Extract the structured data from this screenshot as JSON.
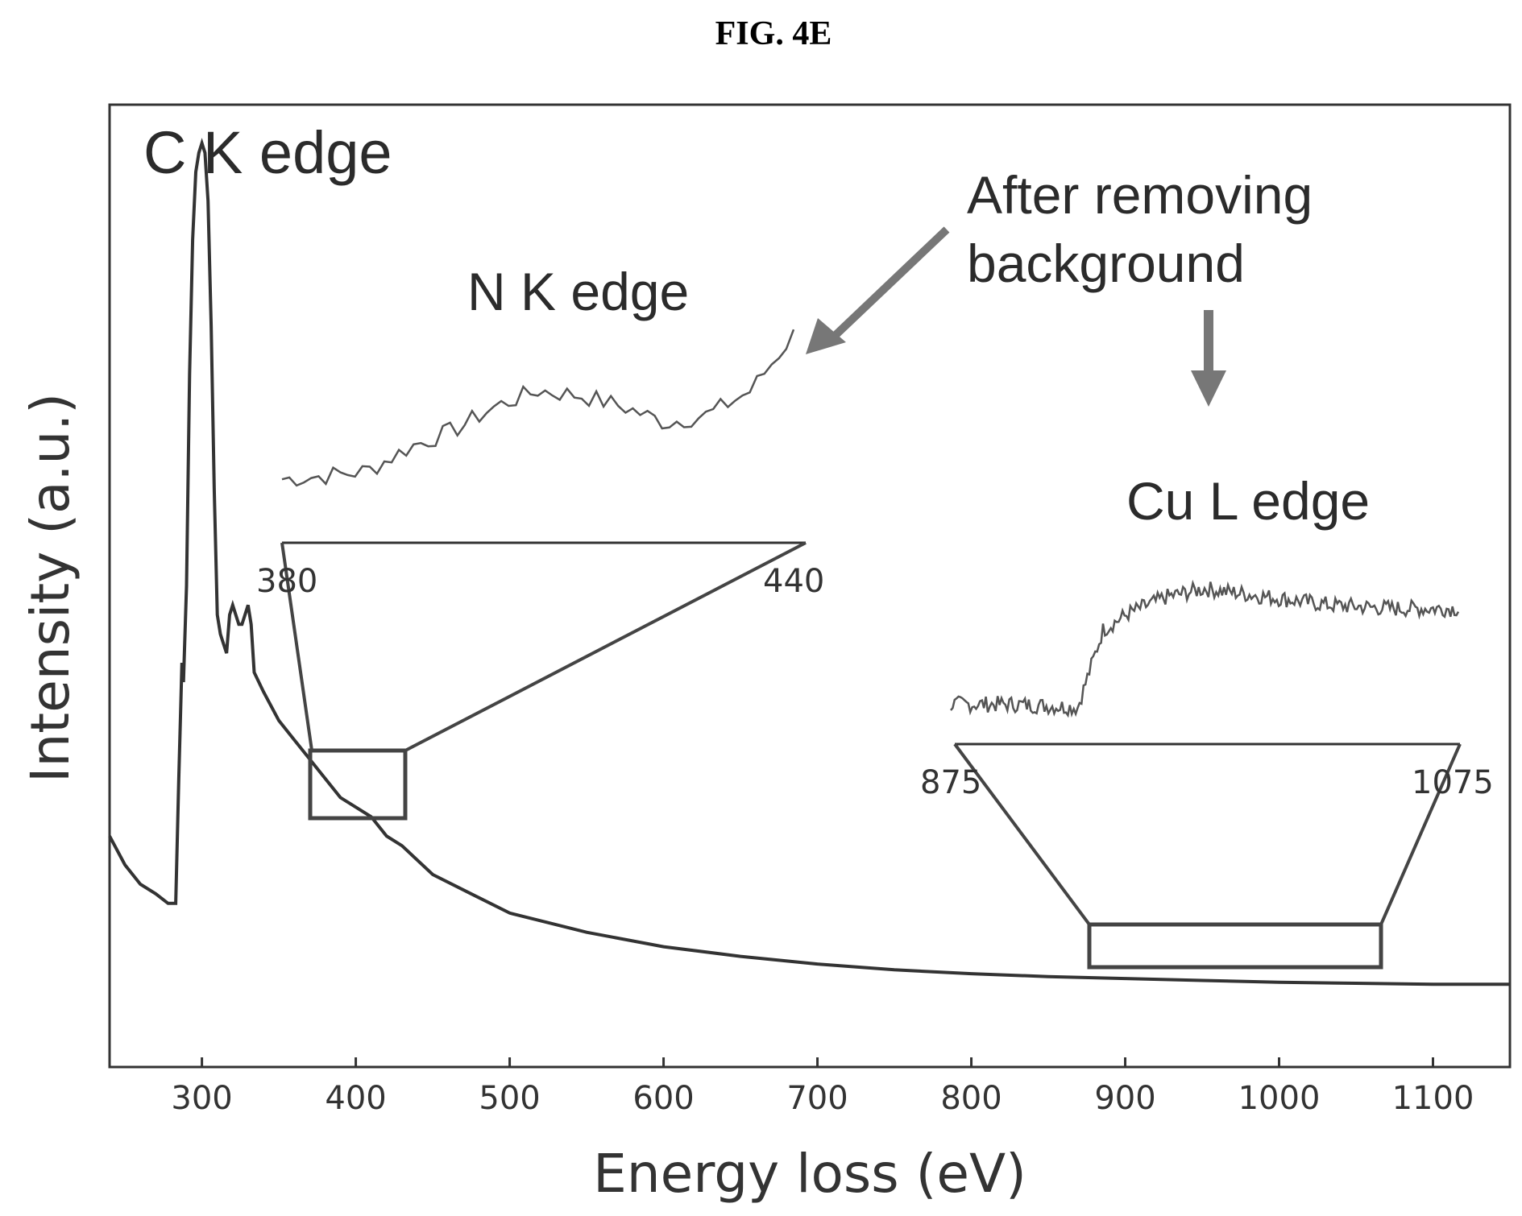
{
  "figure_label": "FIG. 4E",
  "chart_data": {
    "type": "line",
    "xlabel": "Energy loss (eV)",
    "ylabel": "Intensity (a.u.)",
    "xlim": [
      240,
      1150
    ],
    "ylim": [
      0,
      1.0
    ],
    "x_ticks": [
      300,
      400,
      500,
      600,
      700,
      800,
      900,
      1000,
      1100
    ],
    "y_ticks_shown": false,
    "series": [
      {
        "x": [
          240,
          250,
          260,
          270,
          278,
          283,
          285,
          287,
          288,
          290,
          292,
          294,
          296,
          298,
          300,
          302,
          304,
          306,
          308,
          310,
          312,
          314,
          316,
          318,
          320,
          322,
          324,
          326,
          328,
          330,
          332,
          334,
          340,
          350,
          360,
          370,
          380,
          390,
          400,
          410,
          420,
          430,
          450,
          475,
          500,
          550,
          600,
          650,
          700,
          750,
          800,
          850,
          900,
          950,
          1000,
          1050,
          1100,
          1150
        ],
        "y": [
          0.24,
          0.21,
          0.19,
          0.18,
          0.17,
          0.17,
          0.3,
          0.42,
          0.4,
          0.5,
          0.72,
          0.86,
          0.93,
          0.95,
          0.96,
          0.95,
          0.9,
          0.77,
          0.6,
          0.47,
          0.45,
          0.44,
          0.43,
          0.47,
          0.48,
          0.47,
          0.46,
          0.46,
          0.47,
          0.48,
          0.46,
          0.41,
          0.39,
          0.36,
          0.34,
          0.32,
          0.3,
          0.28,
          0.27,
          0.26,
          0.24,
          0.23,
          0.2,
          0.18,
          0.16,
          0.14,
          0.125,
          0.115,
          0.107,
          0.101,
          0.097,
          0.094,
          0.092,
          0.09,
          0.088,
          0.087,
          0.086,
          0.086
        ]
      }
    ],
    "insets": [
      {
        "label": "N K edge",
        "range_start": "380",
        "range_end": "440",
        "x": [
          380,
          385,
          390,
          395,
          400,
          405,
          410,
          415,
          420,
          425,
          430,
          435,
          440
        ],
        "y": [
          0.0,
          0.02,
          0.05,
          0.2,
          0.3,
          0.45,
          0.55,
          0.52,
          0.45,
          0.35,
          0.4,
          0.55,
          0.9
        ]
      },
      {
        "label": "Cu L edge",
        "range_start": "875",
        "range_end": "1075",
        "x": [
          875,
          900,
          925,
          935,
          945,
          960,
          975,
          1000,
          1025,
          1050,
          1075
        ],
        "y": [
          0.1,
          0.1,
          0.08,
          0.55,
          0.65,
          0.75,
          0.8,
          0.75,
          0.7,
          0.68,
          0.68
        ]
      }
    ],
    "annotations": [
      "C K edge",
      "After removing background"
    ]
  }
}
